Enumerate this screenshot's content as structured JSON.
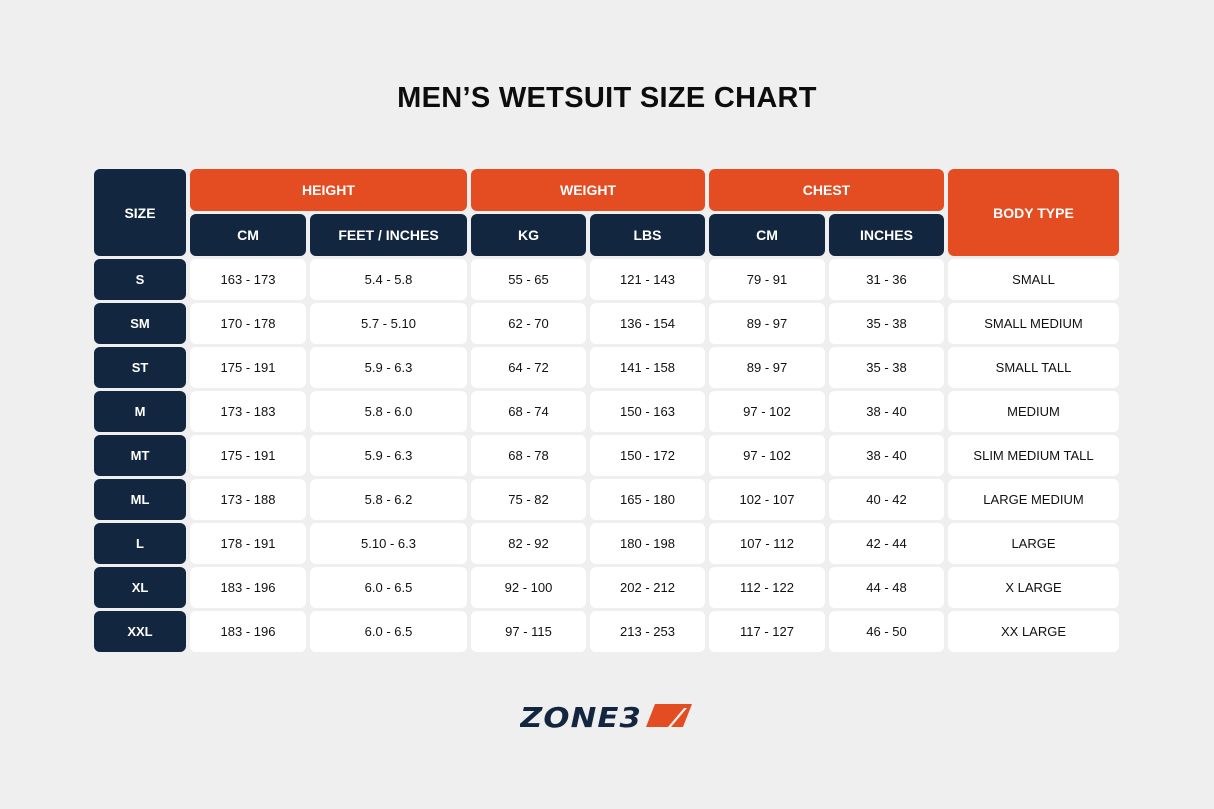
{
  "title": "MEN’S WETSUIT SIZE CHART",
  "colors": {
    "navy": "#13263f",
    "orange": "#e44d22",
    "background": "#efefef"
  },
  "headers": {
    "size": "SIZE",
    "height": "HEIGHT",
    "weight": "WEIGHT",
    "chest": "CHEST",
    "body_type": "BODY TYPE",
    "sub": [
      "CM",
      "FEET / INCHES",
      "KG",
      "LBS",
      "CM",
      "INCHES"
    ]
  },
  "rows": [
    [
      "S",
      "163 - 173",
      "5.4 - 5.8",
      "55 - 65",
      "121 - 143",
      "79 - 91",
      "31 - 36",
      "SMALL"
    ],
    [
      "SM",
      "170 - 178",
      "5.7 - 5.10",
      "62 - 70",
      "136 - 154",
      "89 - 97",
      "35 - 38",
      "SMALL MEDIUM"
    ],
    [
      "ST",
      "175 - 191",
      "5.9 - 6.3",
      "64 - 72",
      "141 - 158",
      "89 - 97",
      "35 - 38",
      "SMALL TALL"
    ],
    [
      "M",
      "173 - 183",
      "5.8 - 6.0",
      "68 - 74",
      "150 - 163",
      "97 - 102",
      "38 - 40",
      "MEDIUM"
    ],
    [
      "MT",
      "175 - 191",
      "5.9 - 6.3",
      "68 - 78",
      "150 - 172",
      "97 - 102",
      "38 - 40",
      "SLIM MEDIUM TALL"
    ],
    [
      "ML",
      "173 - 188",
      "5.8 - 6.2",
      "75 - 82",
      "165 - 180",
      "102 - 107",
      "40 - 42",
      "LARGE MEDIUM"
    ],
    [
      "L",
      "178 - 191",
      "5.10 - 6.3",
      "82 - 92",
      "180 - 198",
      "107 - 112",
      "42 - 44",
      "LARGE"
    ],
    [
      "XL",
      "183 - 196",
      "6.0 - 6.5",
      "92 - 100",
      "202 - 212",
      "112 - 122",
      "44 - 48",
      "X LARGE"
    ],
    [
      "XXL",
      "183 - 196",
      "6.0 - 6.5",
      "97 - 115",
      "213 - 253",
      "117 - 127",
      "46 - 50",
      "XX LARGE"
    ]
  ],
  "logo": {
    "text": "ZONE3"
  }
}
